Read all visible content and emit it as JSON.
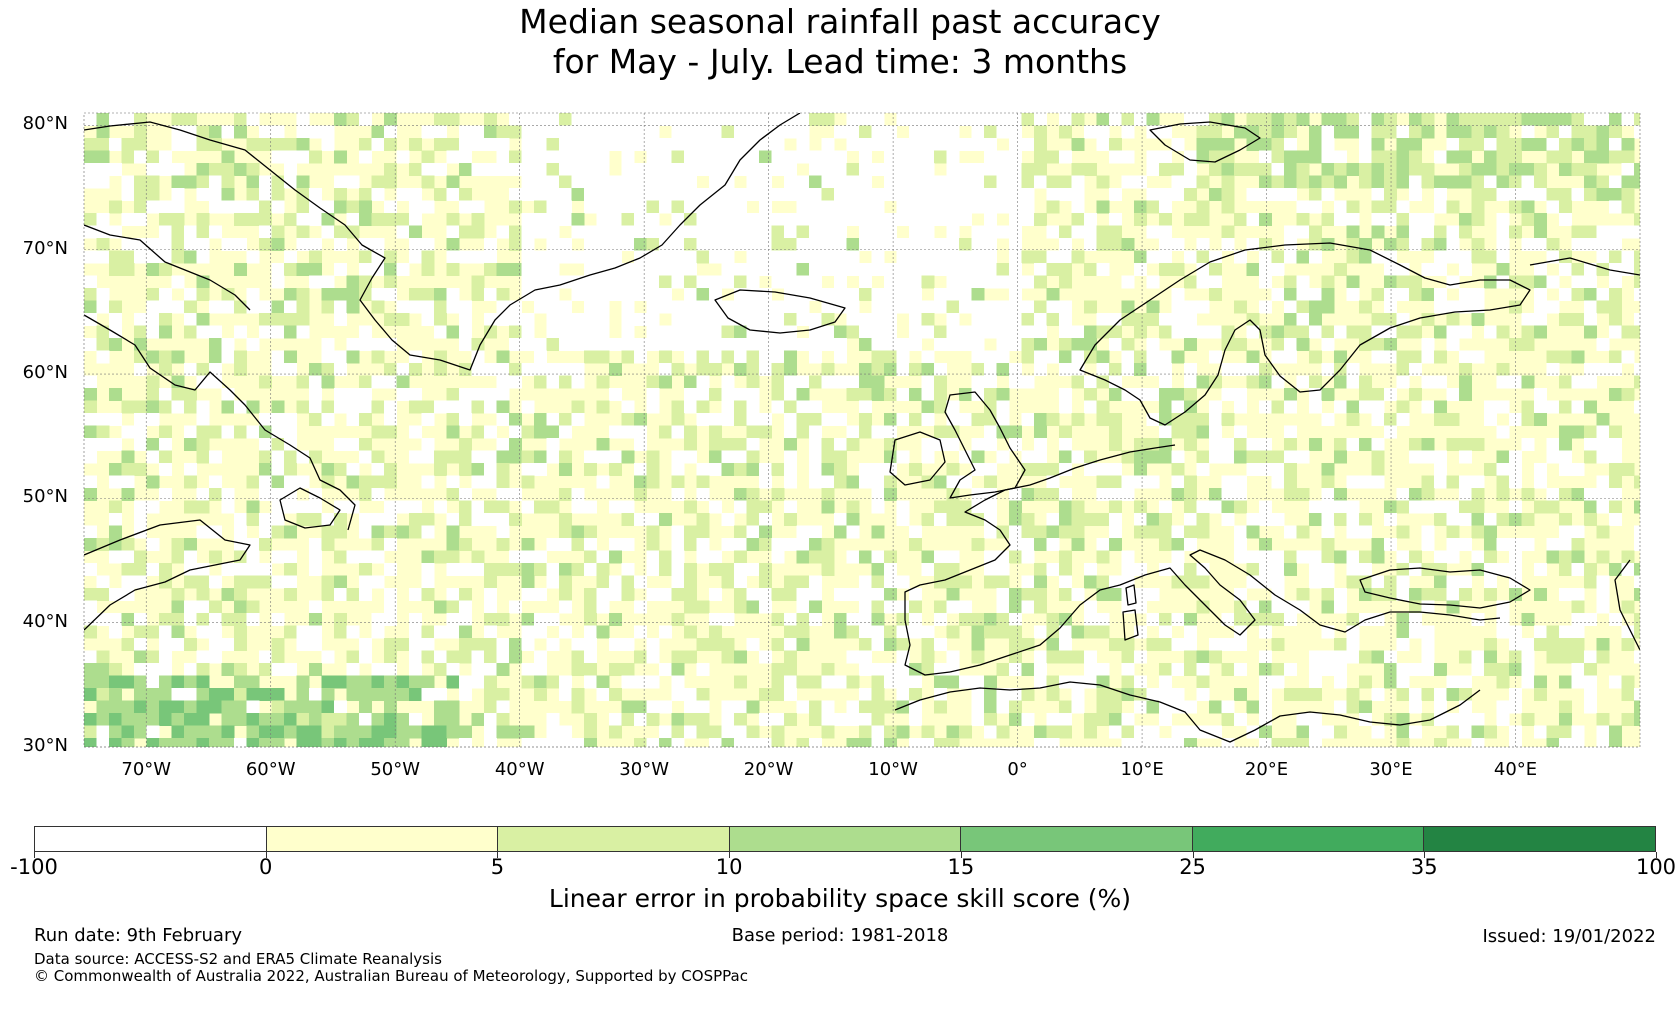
{
  "title": {
    "line1": "Median seasonal rainfall past accuracy",
    "line2": "for May - July. Lead time: 3 months"
  },
  "map": {
    "lon_range": [
      -75,
      50
    ],
    "lat_range": [
      30,
      81
    ],
    "lat_labels": [
      {
        "lat": 80,
        "text": "80°N"
      },
      {
        "lat": 70,
        "text": "70°N"
      },
      {
        "lat": 60,
        "text": "60°N"
      },
      {
        "lat": 50,
        "text": "50°N"
      },
      {
        "lat": 40,
        "text": "40°N"
      },
      {
        "lat": 30,
        "text": "30°N"
      }
    ],
    "lon_labels": [
      {
        "lon": -70,
        "text": "70°W"
      },
      {
        "lon": -60,
        "text": "60°W"
      },
      {
        "lon": -50,
        "text": "50°W"
      },
      {
        "lon": -40,
        "text": "40°W"
      },
      {
        "lon": -30,
        "text": "30°W"
      },
      {
        "lon": -20,
        "text": "20°W"
      },
      {
        "lon": -10,
        "text": "10°W"
      },
      {
        "lon": 0,
        "text": "0°"
      },
      {
        "lon": 10,
        "text": "10°E"
      },
      {
        "lon": 20,
        "text": "20°E"
      },
      {
        "lon": 30,
        "text": "30°E"
      },
      {
        "lon": 40,
        "text": "40°E"
      }
    ],
    "gridlines": true
  },
  "colorbar": {
    "ticks": [
      "-100",
      "0",
      "5",
      "10",
      "15",
      "25",
      "35",
      "100"
    ],
    "colors": [
      "#ffffff",
      "#ffffcc",
      "#d9f0a3",
      "#addd8e",
      "#78c679",
      "#41ab5d",
      "#238443"
    ],
    "label": "Linear error in probability space skill score (%)"
  },
  "footer": {
    "run_date": "Run date: 9th February",
    "base_period": "Base period: 1981-2018",
    "issued": "Issued: 19/01/2022",
    "data_source": "Data source: ACCESS-S2 and ERA5 Climate Reanalysis",
    "copyright": "© Commonwealth of Australia 2022, Australian Bureau of Meteorology, Supported by COSPPac"
  }
}
